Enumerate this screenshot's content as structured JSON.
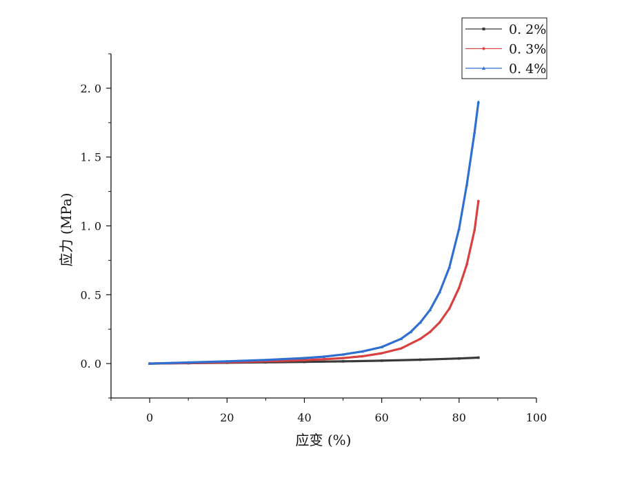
{
  "chart_data": {
    "type": "line",
    "title": "",
    "xlabel": "应变 (%)",
    "ylabel": "应力 (MPa)",
    "xlim": [
      -10,
      100
    ],
    "ylim": [
      -0.25,
      2.25
    ],
    "xticks": [
      0,
      20,
      40,
      60,
      80,
      100
    ],
    "xtick_labels": [
      "0",
      "20",
      "40",
      "60",
      "80",
      "100"
    ],
    "yticks": [
      0.0,
      0.5,
      1.0,
      1.5,
      2.0
    ],
    "ytick_labels": [
      "0. 0",
      "0. 5",
      "1. 0",
      "1. 5",
      "2. 0"
    ],
    "grid": false,
    "legend_position": "top-right",
    "series": [
      {
        "name": "0. 2%",
        "color": "#3a3a3a",
        "marker": "square",
        "x": [
          0,
          10,
          20,
          30,
          40,
          50,
          60,
          70,
          80,
          85
        ],
        "y": [
          0.0,
          0.003,
          0.006,
          0.009,
          0.012,
          0.016,
          0.021,
          0.028,
          0.037,
          0.043
        ]
      },
      {
        "name": "0. 3%",
        "color": "#d94141",
        "marker": "circle",
        "x": [
          0,
          10,
          20,
          30,
          40,
          45,
          50,
          55,
          60,
          65,
          70,
          72.5,
          75,
          77.5,
          80,
          82,
          84,
          85
        ],
        "y": [
          0.0,
          0.004,
          0.009,
          0.016,
          0.025,
          0.031,
          0.04,
          0.053,
          0.075,
          0.11,
          0.18,
          0.23,
          0.3,
          0.4,
          0.55,
          0.72,
          0.97,
          1.18
        ]
      },
      {
        "name": "0. 4%",
        "color": "#2f6fd1",
        "marker": "triangle",
        "x": [
          0,
          10,
          20,
          30,
          40,
          45,
          50,
          55,
          60,
          65,
          67.5,
          70,
          72.5,
          75,
          77.5,
          80,
          82,
          84,
          85
        ],
        "y": [
          0.0,
          0.008,
          0.016,
          0.026,
          0.04,
          0.05,
          0.066,
          0.088,
          0.12,
          0.18,
          0.23,
          0.3,
          0.39,
          0.52,
          0.7,
          0.98,
          1.3,
          1.68,
          1.9
        ]
      }
    ]
  }
}
